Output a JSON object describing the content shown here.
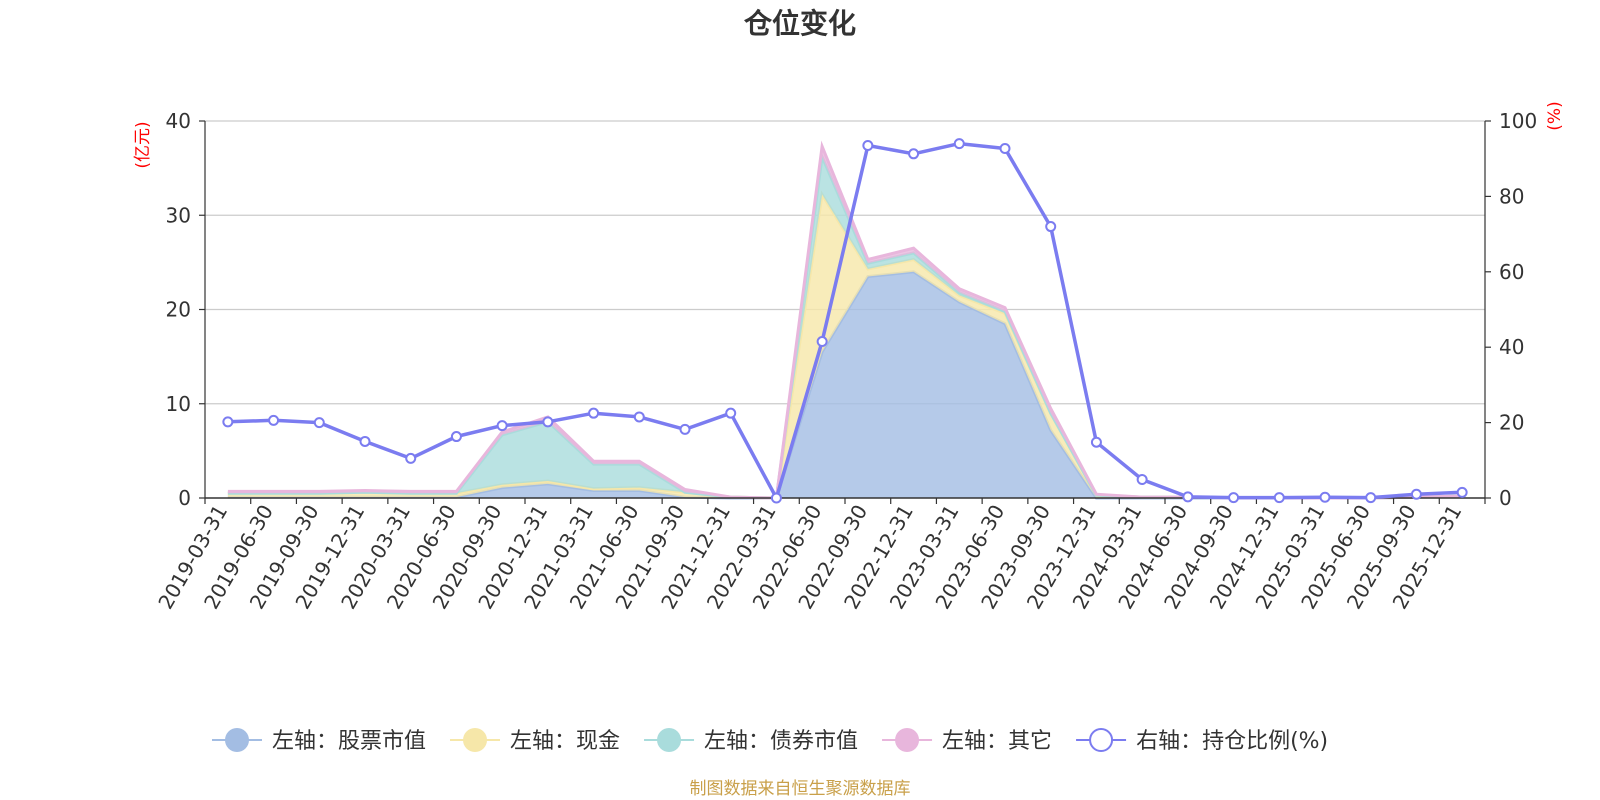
{
  "chart_data": {
    "type": "area",
    "title": "仓位变化",
    "left_axis": {
      "unit": "(亿元)",
      "ylim": [
        0,
        40
      ],
      "ticks": [
        "0",
        "10",
        "20",
        "30",
        "40"
      ]
    },
    "right_axis": {
      "unit": "(%)",
      "ylim": [
        0,
        100
      ],
      "ticks": [
        "0",
        "20",
        "40",
        "60",
        "80",
        "100"
      ]
    },
    "categories": [
      "2019-03-31",
      "2019-06-30",
      "2019-09-30",
      "2019-12-31",
      "2020-03-31",
      "2020-06-30",
      "2020-09-30",
      "2020-12-31",
      "2021-03-31",
      "2021-06-30",
      "2021-09-30",
      "2021-12-31",
      "2022-03-31",
      "2022-06-30",
      "2022-09-30",
      "2022-12-31",
      "2023-03-31",
      "2023-06-30",
      "2023-09-30",
      "2023-12-31",
      "2024-03-31",
      "2024-06-30",
      "2024-09-30",
      "2024-12-31",
      "2025-03-31",
      "2025-06-30",
      "2025-09-30",
      "2025-12-31"
    ],
    "stacked_series": [
      {
        "name": "左轴：股票市值",
        "color": "#a3bde3",
        "values": [
          0.1,
          0.1,
          0.1,
          0.1,
          0.1,
          0.1,
          1.1,
          1.5,
          0.8,
          0.8,
          0.1,
          0,
          0,
          15.5,
          23.5,
          24.0,
          20.8,
          18.5,
          7.2,
          0,
          0,
          0,
          0,
          0,
          0,
          0,
          0.1,
          0.2
        ]
      },
      {
        "name": "左轴：现金",
        "color": "#f6e7a9",
        "values": [
          0.4,
          0.4,
          0.4,
          0.5,
          0.4,
          0.4,
          0.3,
          0.3,
          0.2,
          0.3,
          0.5,
          0.1,
          0,
          16.7,
          0.8,
          1.3,
          0.7,
          1.1,
          1.8,
          0.3,
          0.1,
          0.1,
          0,
          0,
          0,
          0,
          0,
          0
        ]
      },
      {
        "name": "左轴：债券市值",
        "color": "#a9dcdc",
        "values": [
          0,
          0,
          0,
          0,
          0,
          0,
          5.3,
          6.3,
          2.6,
          2.5,
          0,
          0,
          0,
          4.0,
          0.6,
          0.7,
          0.3,
          0.2,
          0,
          0,
          0,
          0,
          0,
          0,
          0,
          0,
          0,
          0
        ]
      },
      {
        "name": "左轴：其它",
        "color": "#e8b6dc",
        "values": [
          0.2,
          0.2,
          0.2,
          0.2,
          0.2,
          0.2,
          0.3,
          0.5,
          0.3,
          0.3,
          0.3,
          0,
          0,
          1.1,
          0.4,
          0.5,
          0.4,
          0.4,
          0.5,
          0.1,
          0,
          0,
          0,
          0,
          0,
          0,
          0,
          0
        ]
      }
    ],
    "line_series": {
      "name": "右轴：持仓比例(%)",
      "color": "#7b7cf0",
      "axis": "right",
      "values": [
        20.2,
        20.6,
        20.0,
        15.0,
        10.5,
        16.3,
        19.2,
        20.2,
        22.5,
        21.5,
        18.2,
        22.5,
        0,
        41.5,
        93.5,
        91.3,
        94.0,
        92.7,
        72.0,
        14.8,
        4.9,
        0.3,
        0.1,
        0.1,
        0.2,
        0.1,
        1.0,
        1.5
      ]
    },
    "legend_position": "bottom",
    "grid": true
  },
  "footnote": "制图数据来自恒生聚源数据库"
}
